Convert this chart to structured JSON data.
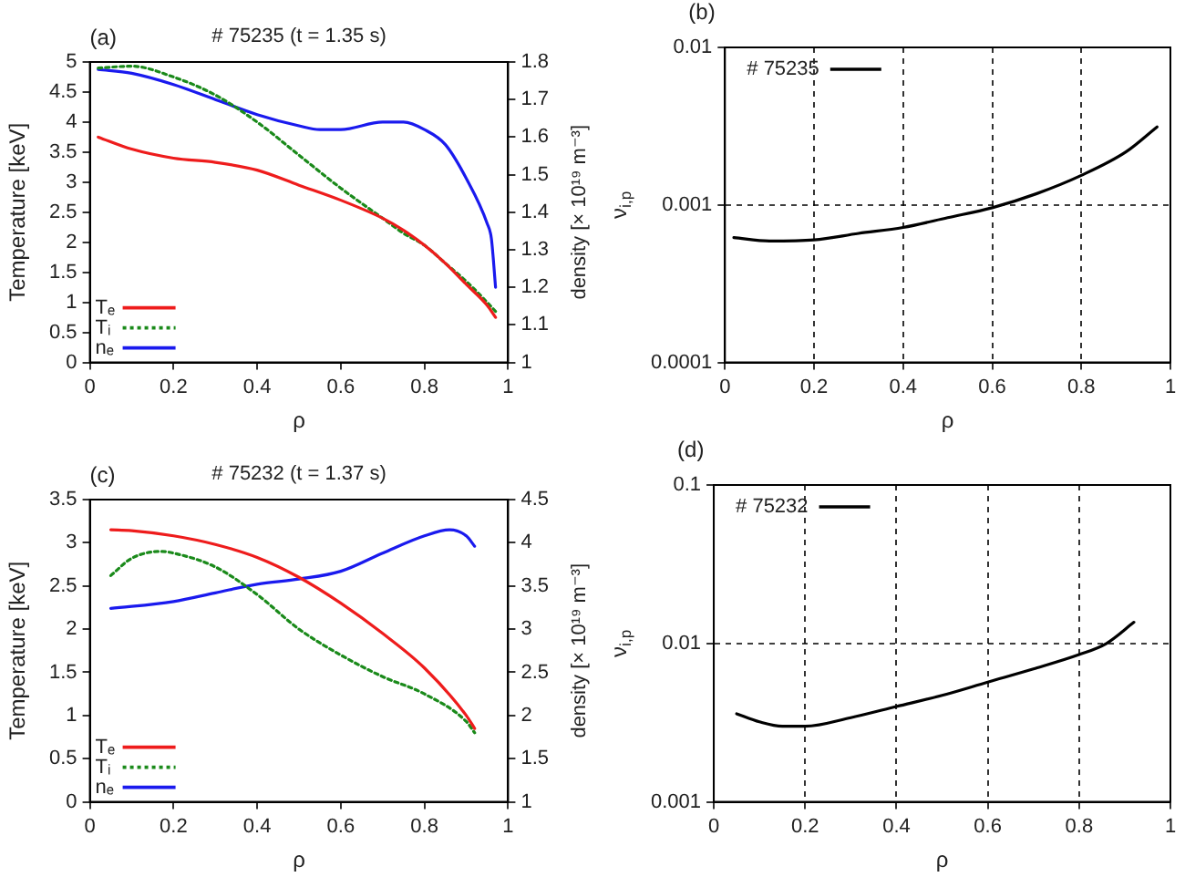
{
  "chart_data": [
    {
      "type": "line",
      "title": "# 75235 (t = 1.35 s)",
      "annotations": [
        "(a)"
      ],
      "xlabel": "ρ",
      "ylabel": "Temperature [keV]",
      "y2label": "density [× 10¹⁹ m⁻³]",
      "xlim": [
        0,
        1
      ],
      "xticks": [
        0,
        0.2,
        0.4,
        0.6,
        0.8,
        1
      ],
      "ylim": [
        0,
        5
      ],
      "yticks": [
        0,
        0.5,
        1,
        1.5,
        2,
        2.5,
        3,
        3.5,
        4,
        4.5,
        5
      ],
      "y2lim": [
        1,
        1.8
      ],
      "y2ticks": [
        1,
        1.1,
        1.2,
        1.3,
        1.4,
        1.5,
        1.6,
        1.7,
        1.8
      ],
      "grid": false,
      "legend": "bottom left",
      "series": [
        {
          "name": "Tₑ",
          "color": "#ee1c1c",
          "line_style": "solid",
          "x": [
            0.02,
            0.1,
            0.2,
            0.3,
            0.4,
            0.5,
            0.6,
            0.7,
            0.75,
            0.8,
            0.85,
            0.9,
            0.95,
            0.97
          ],
          "values": [
            3.75,
            3.55,
            3.4,
            3.33,
            3.2,
            2.95,
            2.7,
            2.4,
            2.2,
            1.95,
            1.65,
            1.3,
            0.95,
            0.75
          ]
        },
        {
          "name": "Tᵢ",
          "color": "#1a8a1a",
          "line_style": "dotted",
          "x": [
            0.02,
            0.1,
            0.2,
            0.3,
            0.4,
            0.5,
            0.6,
            0.7,
            0.75,
            0.8,
            0.85,
            0.9,
            0.95,
            0.97
          ],
          "values": [
            4.9,
            4.93,
            4.75,
            4.45,
            4.0,
            3.45,
            2.9,
            2.4,
            2.15,
            1.95,
            1.65,
            1.35,
            1.0,
            0.85
          ]
        },
        {
          "name": "nₑ",
          "color": "#1a1aee",
          "line_style": "solid",
          "axis": "y2",
          "x": [
            0.02,
            0.1,
            0.2,
            0.3,
            0.4,
            0.5,
            0.55,
            0.6,
            0.7,
            0.75,
            0.8,
            0.85,
            0.9,
            0.95,
            0.96,
            0.97
          ],
          "values": [
            1.78,
            1.77,
            1.74,
            1.7,
            1.66,
            1.63,
            1.62,
            1.62,
            1.64,
            1.64,
            1.62,
            1.58,
            1.49,
            1.37,
            1.33,
            1.2
          ]
        }
      ]
    },
    {
      "type": "line",
      "annotations": [
        "(b)"
      ],
      "xlabel": "ρ",
      "ylabel": "ν$_{i,p}$",
      "log": "y",
      "xlim": [
        0,
        1
      ],
      "xticks": [
        0,
        0.2,
        0.4,
        0.6,
        0.8,
        1
      ],
      "ylim": [
        0.0001,
        0.01
      ],
      "yticks": [
        0.0001,
        0.001,
        0.01
      ],
      "grid": true,
      "legend": "top left",
      "series": [
        {
          "name": "# 75235",
          "color": "#000000",
          "line_style": "solid",
          "x": [
            0.02,
            0.1,
            0.2,
            0.3,
            0.4,
            0.5,
            0.6,
            0.7,
            0.8,
            0.9,
            0.97
          ],
          "values": [
            0.00062,
            0.00059,
            0.0006,
            0.00066,
            0.00072,
            0.00083,
            0.00096,
            0.00118,
            0.00154,
            0.00217,
            0.00313
          ]
        }
      ]
    },
    {
      "type": "line",
      "title": "# 75232 (t = 1.37 s)",
      "annotations": [
        "(c)"
      ],
      "xlabel": "ρ",
      "ylabel": "Temperature [keV]",
      "y2label": "density [× 10¹⁹ m⁻³]",
      "xlim": [
        0,
        1
      ],
      "xticks": [
        0,
        0.2,
        0.4,
        0.6,
        0.8,
        1
      ],
      "ylim": [
        0,
        3.5
      ],
      "yticks": [
        0,
        0.5,
        1,
        1.5,
        2,
        2.5,
        3,
        3.5
      ],
      "y2lim": [
        1,
        4.5
      ],
      "y2ticks": [
        1,
        1.5,
        2,
        2.5,
        3,
        3.5,
        4,
        4.5
      ],
      "grid": false,
      "legend": "bottom left",
      "series": [
        {
          "name": "Tₑ",
          "color": "#ee1c1c",
          "line_style": "solid",
          "x": [
            0.05,
            0.1,
            0.2,
            0.3,
            0.4,
            0.5,
            0.6,
            0.7,
            0.8,
            0.9,
            0.92
          ],
          "values": [
            3.15,
            3.14,
            3.08,
            2.98,
            2.83,
            2.6,
            2.3,
            1.95,
            1.55,
            1.0,
            0.85
          ]
        },
        {
          "name": "Tᵢ",
          "color": "#1a8a1a",
          "line_style": "dotted",
          "x": [
            0.05,
            0.1,
            0.17,
            0.2,
            0.3,
            0.4,
            0.5,
            0.6,
            0.7,
            0.8,
            0.9,
            0.92
          ],
          "values": [
            2.62,
            2.82,
            2.9,
            2.88,
            2.72,
            2.4,
            2.0,
            1.7,
            1.45,
            1.25,
            0.93,
            0.8
          ]
        },
        {
          "name": "nₑ",
          "color": "#1a1aee",
          "line_style": "solid",
          "axis": "y2",
          "x": [
            0.05,
            0.2,
            0.3,
            0.4,
            0.5,
            0.6,
            0.7,
            0.8,
            0.86,
            0.9,
            0.92
          ],
          "values": [
            3.24,
            3.32,
            3.42,
            3.52,
            3.58,
            3.67,
            3.88,
            4.08,
            4.15,
            4.08,
            3.96
          ]
        }
      ]
    },
    {
      "type": "line",
      "annotations": [
        "(d)"
      ],
      "xlabel": "ρ",
      "ylabel": "ν$_{i,p}$",
      "log": "y",
      "xlim": [
        0,
        1
      ],
      "xticks": [
        0,
        0.2,
        0.4,
        0.6,
        0.8,
        1
      ],
      "ylim": [
        0.001,
        0.1
      ],
      "yticks": [
        0.001,
        0.01,
        0.1
      ],
      "grid": true,
      "legend": "top left",
      "series": [
        {
          "name": "# 75232",
          "color": "#000000",
          "line_style": "solid",
          "x": [
            0.05,
            0.1,
            0.15,
            0.2,
            0.3,
            0.4,
            0.5,
            0.6,
            0.7,
            0.8,
            0.86,
            0.92
          ],
          "values": [
            0.0036,
            0.0032,
            0.003,
            0.003,
            0.0034,
            0.004,
            0.0047,
            0.0057,
            0.0069,
            0.0085,
            0.01,
            0.0136
          ]
        }
      ]
    }
  ]
}
